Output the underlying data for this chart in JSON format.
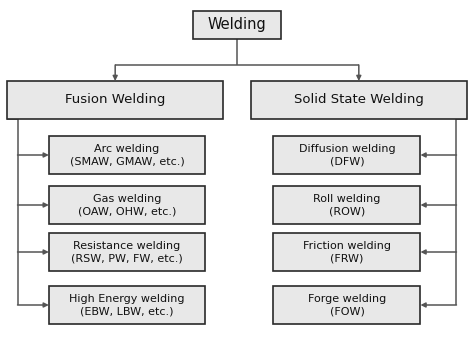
{
  "bg_color": "#ffffff",
  "box_fill": "#e8e8e8",
  "box_edge": "#2a2a2a",
  "line_color": "#555555",
  "title": "Welding",
  "left_parent": "Fusion Welding",
  "right_parent": "Solid State Welding",
  "left_children": [
    "Arc welding\n(SMAW, GMAW, etc.)",
    "Gas welding\n(OAW, OHW, etc.)",
    "Resistance welding\n(RSW, PW, FW, etc.)",
    "High Energy welding\n(EBW, LBW, etc.)"
  ],
  "right_children": [
    "Diffusion welding\n(DFW)",
    "Roll welding\n(ROW)",
    "Friction welding\n(FRW)",
    "Forge welding\n(FOW)"
  ],
  "font_size_title": 10.5,
  "font_size_parent": 9.5,
  "font_size_child": 8.0,
  "fig_w": 4.74,
  "fig_h": 3.62,
  "dpi": 100
}
